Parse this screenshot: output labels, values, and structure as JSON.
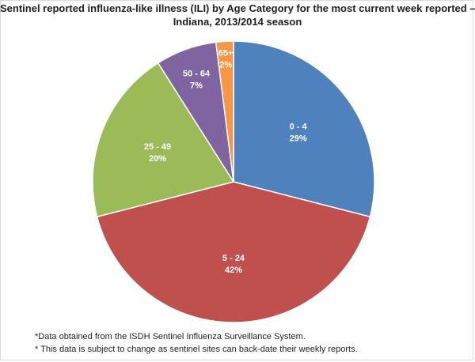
{
  "chart_data": {
    "type": "pie",
    "title_lines": [
      "Sentinel reported influenza-like illness (ILI) by Age Category for the most current week reported –",
      "Indiana, 2013/2014 season"
    ],
    "slices": [
      {
        "label": "0 - 4",
        "value_label": "29%",
        "value": 29,
        "color": "#4f81bd"
      },
      {
        "label": "5 - 24",
        "value_label": "42%",
        "value": 42,
        "color": "#c0504d"
      },
      {
        "label": "25 - 49",
        "value_label": "20%",
        "value": 20,
        "color": "#9bbb59"
      },
      {
        "label": "50 - 64",
        "value_label": "7%",
        "value": 7,
        "color": "#8064a2"
      },
      {
        "label": "65+",
        "value_label": "2%",
        "value": 2,
        "color": "#f79646"
      }
    ],
    "legend": "none"
  },
  "footnotes": [
    "*Data obtained from the ISDH Sentinel Influenza Surveillance System.",
    "* This data is subject to change as sentinel sites can back-date their weekly reports."
  ]
}
